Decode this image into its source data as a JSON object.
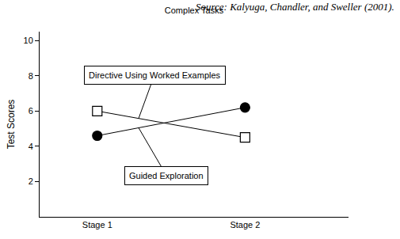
{
  "chart_data": {
    "type": "line",
    "title": "Complex Tasks",
    "source": "Source: Kalyuga, Chandler, and Sweller (2001).",
    "categories": [
      "Stage 1",
      "Stage 2"
    ],
    "ylabel": "Test Scores",
    "ylim": [
      0,
      10.5
    ],
    "yticks": [
      2,
      4,
      6,
      8,
      10
    ],
    "grid": false,
    "series": [
      {
        "name": "Directive Using Worked Examples",
        "color": "#000000",
        "marker": "square-open",
        "values": [
          6.0,
          4.5
        ]
      },
      {
        "name": "Guided Exploration",
        "color": "#000000",
        "marker": "circle",
        "values": [
          4.6,
          6.2
        ]
      }
    ]
  }
}
